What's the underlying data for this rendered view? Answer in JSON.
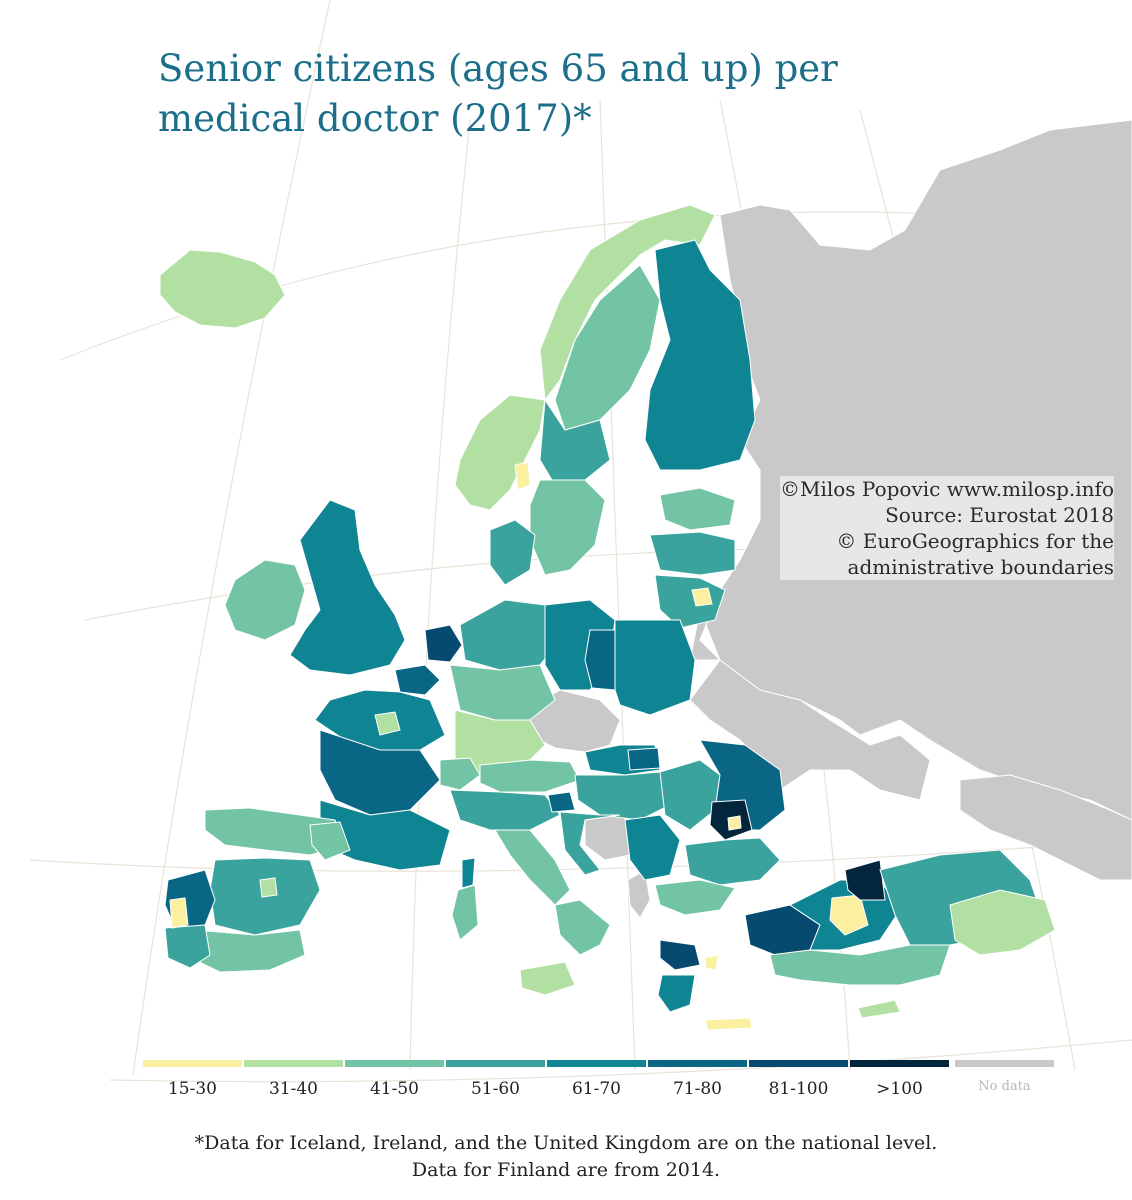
{
  "title": {
    "line1": "Senior citizens (ages 65 and up) per",
    "line2": "medical doctor (2017)*"
  },
  "credits": {
    "author": "©Milos Popovic www.milosp.info",
    "source": "Source: Eurostat 2018",
    "boundaries_line1": "© EuroGeographics for the",
    "boundaries_line2": "administrative boundaries"
  },
  "legend": {
    "items": [
      {
        "label": "15-30",
        "color": "#faf0a0"
      },
      {
        "label": "31-40",
        "color": "#b2e0a3"
      },
      {
        "label": "41-50",
        "color": "#72c4a4"
      },
      {
        "label": "51-60",
        "color": "#3aa39d"
      },
      {
        "label": "61-70",
        "color": "#0f8493"
      },
      {
        "label": "71-80",
        "color": "#0a6685"
      },
      {
        "label": "81-100",
        "color": "#064a6f"
      },
      {
        "label": ">100",
        "color": "#04263d"
      },
      {
        "label": "No data",
        "color": "#c9c9c9"
      }
    ]
  },
  "colors": {
    "title": "#1b6f8a",
    "no_data": "#c9c9c9",
    "graticule": "#e8e3d6"
  },
  "footnote": {
    "line1": "*Data for Iceland, Ireland, and the United Kingdom are on the national level.",
    "line2": "Data for Finland are from 2014."
  }
}
